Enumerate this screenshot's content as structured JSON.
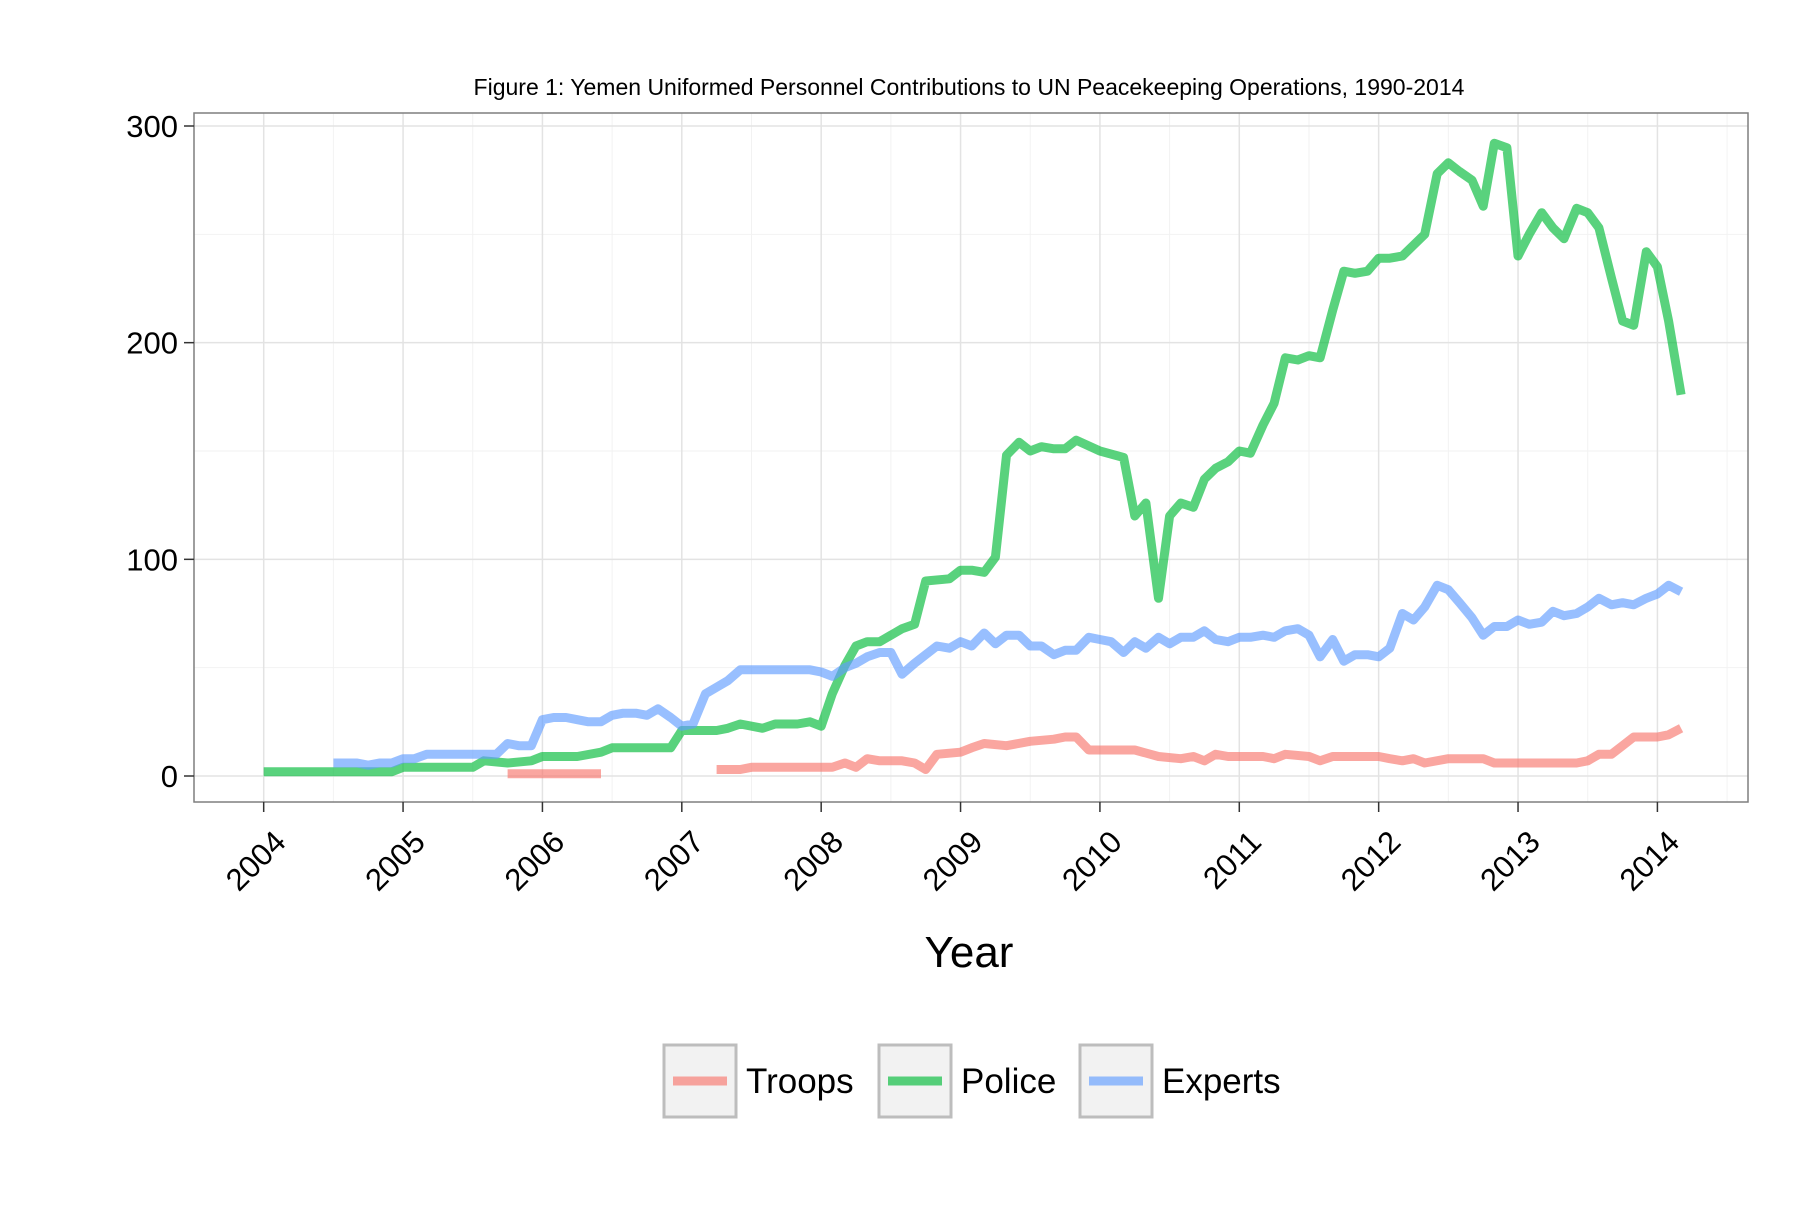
{
  "chart_data": {
    "type": "line",
    "title": "Figure 1: Yemen Uniformed Personnel Contributions to UN Peacekeeping Operations, 1990-2014",
    "xlabel": "Year",
    "ylabel": "",
    "xlim": [
      2003.5,
      2014.65
    ],
    "ylim": [
      -12,
      306
    ],
    "x_ticks": [
      2004,
      2005,
      2006,
      2007,
      2008,
      2009,
      2010,
      2011,
      2012,
      2013,
      2014
    ],
    "x_tick_labels": [
      "2004",
      "2005",
      "2006",
      "2007",
      "2008",
      "2009",
      "2010",
      "2011",
      "2012",
      "2013",
      "2014"
    ],
    "y_ticks": [
      0,
      100,
      200,
      300
    ],
    "y_tick_labels": [
      "0",
      "100",
      "200",
      "300"
    ],
    "grid": true,
    "legend_position": "bottom",
    "series": [
      {
        "name": "Troops",
        "color": "#F8766D",
        "segments": [
          [
            [
              2005.75,
              1
            ],
            [
              2006.42,
              1
            ]
          ],
          [
            [
              2007.25,
              3
            ],
            [
              2007.42,
              3
            ],
            [
              2007.5,
              4
            ],
            [
              2007.67,
              4
            ],
            [
              2008.0,
              4
            ],
            [
              2008.08,
              4
            ],
            [
              2008.17,
              6
            ],
            [
              2008.25,
              4
            ],
            [
              2008.33,
              8
            ],
            [
              2008.42,
              7
            ],
            [
              2008.58,
              7
            ],
            [
              2008.67,
              6
            ],
            [
              2008.75,
              3
            ],
            [
              2008.83,
              10
            ],
            [
              2009.0,
              11
            ],
            [
              2009.08,
              13
            ],
            [
              2009.17,
              15
            ],
            [
              2009.33,
              14
            ],
            [
              2009.5,
              16
            ],
            [
              2009.67,
              17
            ],
            [
              2009.75,
              18
            ],
            [
              2009.83,
              18
            ],
            [
              2009.92,
              12
            ],
            [
              2010.08,
              12
            ],
            [
              2010.25,
              12
            ],
            [
              2010.42,
              9
            ],
            [
              2010.58,
              8
            ],
            [
              2010.67,
              9
            ],
            [
              2010.75,
              7
            ],
            [
              2010.83,
              10
            ],
            [
              2010.92,
              9
            ],
            [
              2011.17,
              9
            ],
            [
              2011.25,
              8
            ],
            [
              2011.33,
              10
            ],
            [
              2011.5,
              9
            ],
            [
              2011.58,
              7
            ],
            [
              2011.67,
              9
            ],
            [
              2011.92,
              9
            ],
            [
              2012.0,
              9
            ],
            [
              2012.08,
              8
            ],
            [
              2012.17,
              7
            ],
            [
              2012.25,
              8
            ],
            [
              2012.33,
              6
            ],
            [
              2012.5,
              8
            ],
            [
              2012.67,
              8
            ],
            [
              2012.75,
              8
            ],
            [
              2012.83,
              6
            ],
            [
              2013.0,
              6
            ],
            [
              2013.25,
              6
            ],
            [
              2013.42,
              6
            ],
            [
              2013.5,
              7
            ],
            [
              2013.58,
              10
            ],
            [
              2013.67,
              10
            ],
            [
              2013.75,
              14
            ],
            [
              2013.83,
              18
            ],
            [
              2014.0,
              18
            ],
            [
              2014.08,
              19
            ],
            [
              2014.17,
              22
            ]
          ]
        ]
      },
      {
        "name": "Police",
        "color": "#00BA38",
        "segments": [
          [
            [
              2004.0,
              2
            ],
            [
              2004.5,
              2
            ],
            [
              2004.92,
              2
            ],
            [
              2005.0,
              4
            ],
            [
              2005.5,
              4
            ],
            [
              2005.58,
              7
            ],
            [
              2005.75,
              6
            ],
            [
              2005.92,
              7
            ],
            [
              2006.0,
              9
            ],
            [
              2006.25,
              9
            ],
            [
              2006.42,
              11
            ],
            [
              2006.5,
              13
            ],
            [
              2006.92,
              13
            ],
            [
              2007.0,
              21
            ],
            [
              2007.25,
              21
            ],
            [
              2007.33,
              22
            ],
            [
              2007.42,
              24
            ],
            [
              2007.58,
              22
            ],
            [
              2007.67,
              24
            ],
            [
              2007.83,
              24
            ],
            [
              2007.92,
              25
            ],
            [
              2008.0,
              23
            ],
            [
              2008.08,
              38
            ],
            [
              2008.17,
              51
            ],
            [
              2008.25,
              60
            ],
            [
              2008.33,
              62
            ],
            [
              2008.42,
              62
            ],
            [
              2008.5,
              65
            ],
            [
              2008.58,
              68
            ],
            [
              2008.67,
              70
            ],
            [
              2008.75,
              90
            ],
            [
              2008.92,
              91
            ],
            [
              2009.0,
              95
            ],
            [
              2009.08,
              95
            ],
            [
              2009.17,
              94
            ],
            [
              2009.25,
              101
            ],
            [
              2009.33,
              148
            ],
            [
              2009.42,
              154
            ],
            [
              2009.5,
              150
            ],
            [
              2009.58,
              152
            ],
            [
              2009.67,
              151
            ],
            [
              2009.75,
              151
            ],
            [
              2009.83,
              155
            ],
            [
              2010.0,
              150
            ],
            [
              2010.17,
              147
            ],
            [
              2010.25,
              120
            ],
            [
              2010.33,
              126
            ],
            [
              2010.42,
              82
            ],
            [
              2010.5,
              120
            ],
            [
              2010.58,
              126
            ],
            [
              2010.67,
              124
            ],
            [
              2010.75,
              137
            ],
            [
              2010.83,
              142
            ],
            [
              2010.92,
              145
            ],
            [
              2011.0,
              150
            ],
            [
              2011.08,
              149
            ],
            [
              2011.17,
              162
            ],
            [
              2011.25,
              172
            ],
            [
              2011.33,
              193
            ],
            [
              2011.42,
              192
            ],
            [
              2011.5,
              194
            ],
            [
              2011.58,
              193
            ],
            [
              2011.67,
              215
            ],
            [
              2011.75,
              233
            ],
            [
              2011.83,
              232
            ],
            [
              2011.92,
              233
            ],
            [
              2012.0,
              239
            ],
            [
              2012.08,
              239
            ],
            [
              2012.17,
              240
            ],
            [
              2012.25,
              245
            ],
            [
              2012.33,
              250
            ],
            [
              2012.42,
              278
            ],
            [
              2012.5,
              283
            ],
            [
              2012.58,
              279
            ],
            [
              2012.67,
              275
            ],
            [
              2012.75,
              263
            ],
            [
              2012.83,
              292
            ],
            [
              2012.92,
              290
            ],
            [
              2013.0,
              240
            ],
            [
              2013.08,
              250
            ],
            [
              2013.17,
              260
            ],
            [
              2013.25,
              253
            ],
            [
              2013.33,
              248
            ],
            [
              2013.42,
              262
            ],
            [
              2013.5,
              260
            ],
            [
              2013.58,
              253
            ],
            [
              2013.67,
              230
            ],
            [
              2013.75,
              210
            ],
            [
              2013.83,
              208
            ],
            [
              2013.92,
              242
            ],
            [
              2014.0,
              235
            ],
            [
              2014.08,
              210
            ],
            [
              2014.17,
              176
            ]
          ]
        ]
      },
      {
        "name": "Experts",
        "color": "#619CFF",
        "segments": [
          [
            [
              2004.5,
              6
            ],
            [
              2004.67,
              6
            ],
            [
              2004.75,
              5
            ],
            [
              2004.83,
              6
            ],
            [
              2004.92,
              6
            ],
            [
              2005.0,
              8
            ],
            [
              2005.08,
              8
            ],
            [
              2005.17,
              10
            ],
            [
              2005.67,
              10
            ],
            [
              2005.75,
              15
            ],
            [
              2005.83,
              14
            ],
            [
              2005.92,
              14
            ],
            [
              2006.0,
              26
            ],
            [
              2006.08,
              27
            ],
            [
              2006.17,
              27
            ],
            [
              2006.25,
              26
            ],
            [
              2006.33,
              25
            ],
            [
              2006.42,
              25
            ],
            [
              2006.5,
              28
            ],
            [
              2006.58,
              29
            ],
            [
              2006.67,
              29
            ],
            [
              2006.75,
              28
            ],
            [
              2006.83,
              31
            ],
            [
              2006.92,
              27
            ],
            [
              2007.0,
              23
            ],
            [
              2007.08,
              24
            ],
            [
              2007.17,
              38
            ],
            [
              2007.25,
              41
            ],
            [
              2007.33,
              44
            ],
            [
              2007.42,
              49
            ],
            [
              2007.58,
              49
            ],
            [
              2007.83,
              49
            ],
            [
              2007.92,
              49
            ],
            [
              2008.0,
              48
            ],
            [
              2008.08,
              46
            ],
            [
              2008.17,
              50
            ],
            [
              2008.25,
              52
            ],
            [
              2008.33,
              55
            ],
            [
              2008.42,
              57
            ],
            [
              2008.5,
              57
            ],
            [
              2008.58,
              47
            ],
            [
              2008.67,
              52
            ],
            [
              2008.75,
              56
            ],
            [
              2008.83,
              60
            ],
            [
              2008.92,
              59
            ],
            [
              2009.0,
              62
            ],
            [
              2009.08,
              60
            ],
            [
              2009.17,
              66
            ],
            [
              2009.25,
              61
            ],
            [
              2009.33,
              65
            ],
            [
              2009.42,
              65
            ],
            [
              2009.5,
              60
            ],
            [
              2009.58,
              60
            ],
            [
              2009.67,
              56
            ],
            [
              2009.75,
              58
            ],
            [
              2009.83,
              58
            ],
            [
              2009.92,
              64
            ],
            [
              2010.0,
              63
            ],
            [
              2010.08,
              62
            ],
            [
              2010.17,
              57
            ],
            [
              2010.25,
              62
            ],
            [
              2010.33,
              59
            ],
            [
              2010.42,
              64
            ],
            [
              2010.5,
              61
            ],
            [
              2010.58,
              64
            ],
            [
              2010.67,
              64
            ],
            [
              2010.75,
              67
            ],
            [
              2010.83,
              63
            ],
            [
              2010.92,
              62
            ],
            [
              2011.0,
              64
            ],
            [
              2011.08,
              64
            ],
            [
              2011.17,
              65
            ],
            [
              2011.25,
              64
            ],
            [
              2011.33,
              67
            ],
            [
              2011.42,
              68
            ],
            [
              2011.5,
              65
            ],
            [
              2011.58,
              55
            ],
            [
              2011.67,
              63
            ],
            [
              2011.75,
              53
            ],
            [
              2011.83,
              56
            ],
            [
              2011.92,
              56
            ],
            [
              2012.0,
              55
            ],
            [
              2012.08,
              59
            ],
            [
              2012.17,
              75
            ],
            [
              2012.25,
              72
            ],
            [
              2012.33,
              78
            ],
            [
              2012.42,
              88
            ],
            [
              2012.5,
              86
            ],
            [
              2012.58,
              80
            ],
            [
              2012.67,
              73
            ],
            [
              2012.75,
              65
            ],
            [
              2012.83,
              69
            ],
            [
              2012.92,
              69
            ],
            [
              2013.0,
              72
            ],
            [
              2013.08,
              70
            ],
            [
              2013.17,
              71
            ],
            [
              2013.25,
              76
            ],
            [
              2013.33,
              74
            ],
            [
              2013.42,
              75
            ],
            [
              2013.5,
              78
            ],
            [
              2013.58,
              82
            ],
            [
              2013.67,
              79
            ],
            [
              2013.75,
              80
            ],
            [
              2013.83,
              79
            ],
            [
              2013.92,
              82
            ],
            [
              2014.0,
              84
            ],
            [
              2014.08,
              88
            ],
            [
              2014.17,
              85
            ]
          ]
        ]
      }
    ]
  }
}
